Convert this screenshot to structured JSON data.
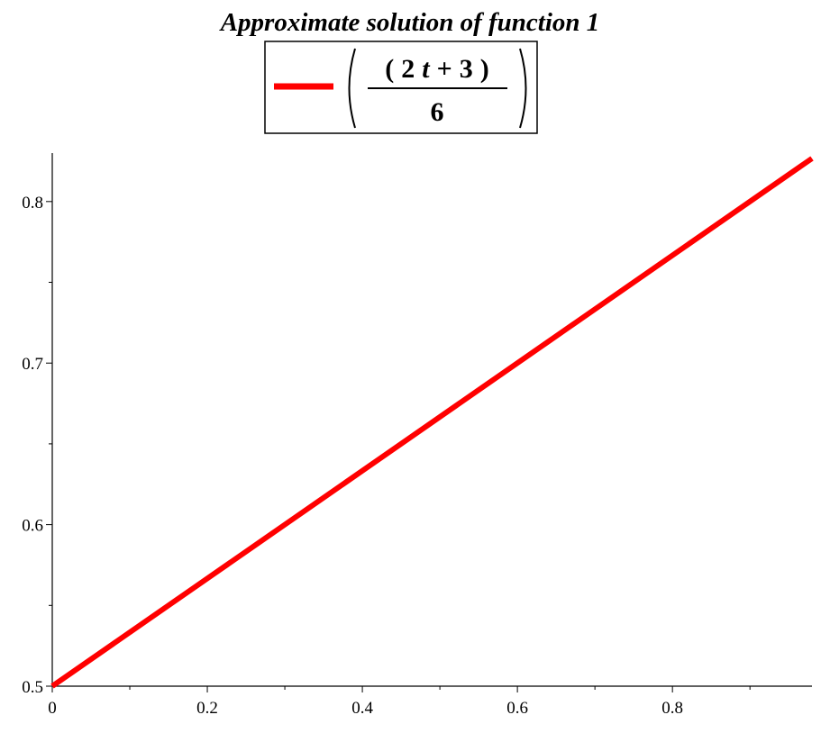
{
  "chart_data": {
    "type": "line",
    "title": "Approximate solution of function 1",
    "xlabel": "",
    "ylabel": "",
    "xlim": [
      0,
      0.98
    ],
    "ylim": [
      0.5,
      0.83
    ],
    "x_ticks": [
      "0",
      "0.2",
      "0.4",
      "0.6",
      "0.8"
    ],
    "x_tick_values": [
      0,
      0.2,
      0.4,
      0.6,
      0.8
    ],
    "y_ticks": [
      "0.5",
      "0.6",
      "0.7",
      "0.8"
    ],
    "y_tick_values": [
      0.5,
      0.6,
      0.7,
      0.8
    ],
    "grid": false,
    "legend": "top",
    "series": [
      {
        "name": "(2 t + 3) / 6",
        "legend_parts": {
          "open": "(",
          "n1": "2",
          "var": "t",
          "op": "+",
          "n2": "3",
          "close": ")",
          "denominator": "6"
        },
        "color": "#ff0000",
        "x": [
          0,
          0.98
        ],
        "y": [
          0.5,
          0.8267
        ]
      }
    ]
  }
}
